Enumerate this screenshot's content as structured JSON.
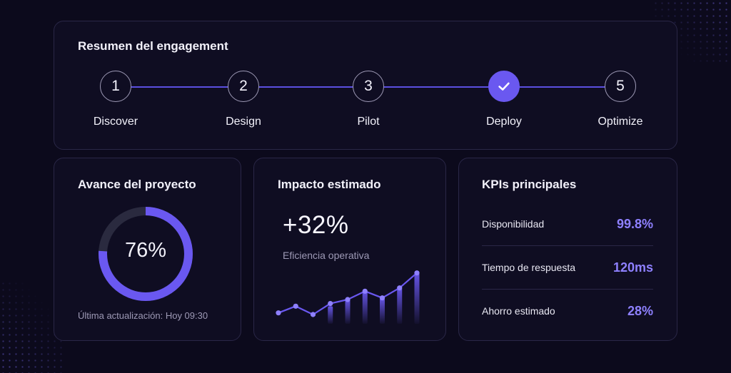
{
  "engagement": {
    "title": "Resumen del engagement",
    "steps": [
      {
        "number": "1",
        "label": "Discover",
        "done": false
      },
      {
        "number": "2",
        "label": "Design",
        "done": false
      },
      {
        "number": "3",
        "label": "Pilot",
        "done": false
      },
      {
        "number": "",
        "label": "Deploy",
        "done": true,
        "icon": "check-icon"
      },
      {
        "number": "5",
        "label": "Optimize",
        "done": false
      }
    ]
  },
  "progress": {
    "title": "Avance del proyecto",
    "percent_label": "76%",
    "percent": 76,
    "updated": "Última actualización: Hoy 09:30"
  },
  "impact": {
    "title": "Impacto estimado",
    "value": "+32%",
    "label": "Eficiencia operativa",
    "trend_values": [
      2,
      4,
      1.5,
      4.8,
      6,
      8.5,
      6.5,
      9.5,
      14
    ],
    "bar_values": [
      4,
      6,
      8.5,
      6.5,
      9.5,
      14
    ]
  },
  "kpis": {
    "title": "KPIs principales",
    "items": [
      {
        "name": "Disponibilidad",
        "value": "99.8%"
      },
      {
        "name": "Tiempo de respuesta",
        "value": "120ms"
      },
      {
        "name": "Ahorro estimado",
        "value": "28%"
      }
    ]
  },
  "colors": {
    "background": "#0c0a1c",
    "card": "#0f0d22",
    "accent": "#6a58f0",
    "accent_text": "#8e80ff",
    "muted": "#9d99b5"
  }
}
